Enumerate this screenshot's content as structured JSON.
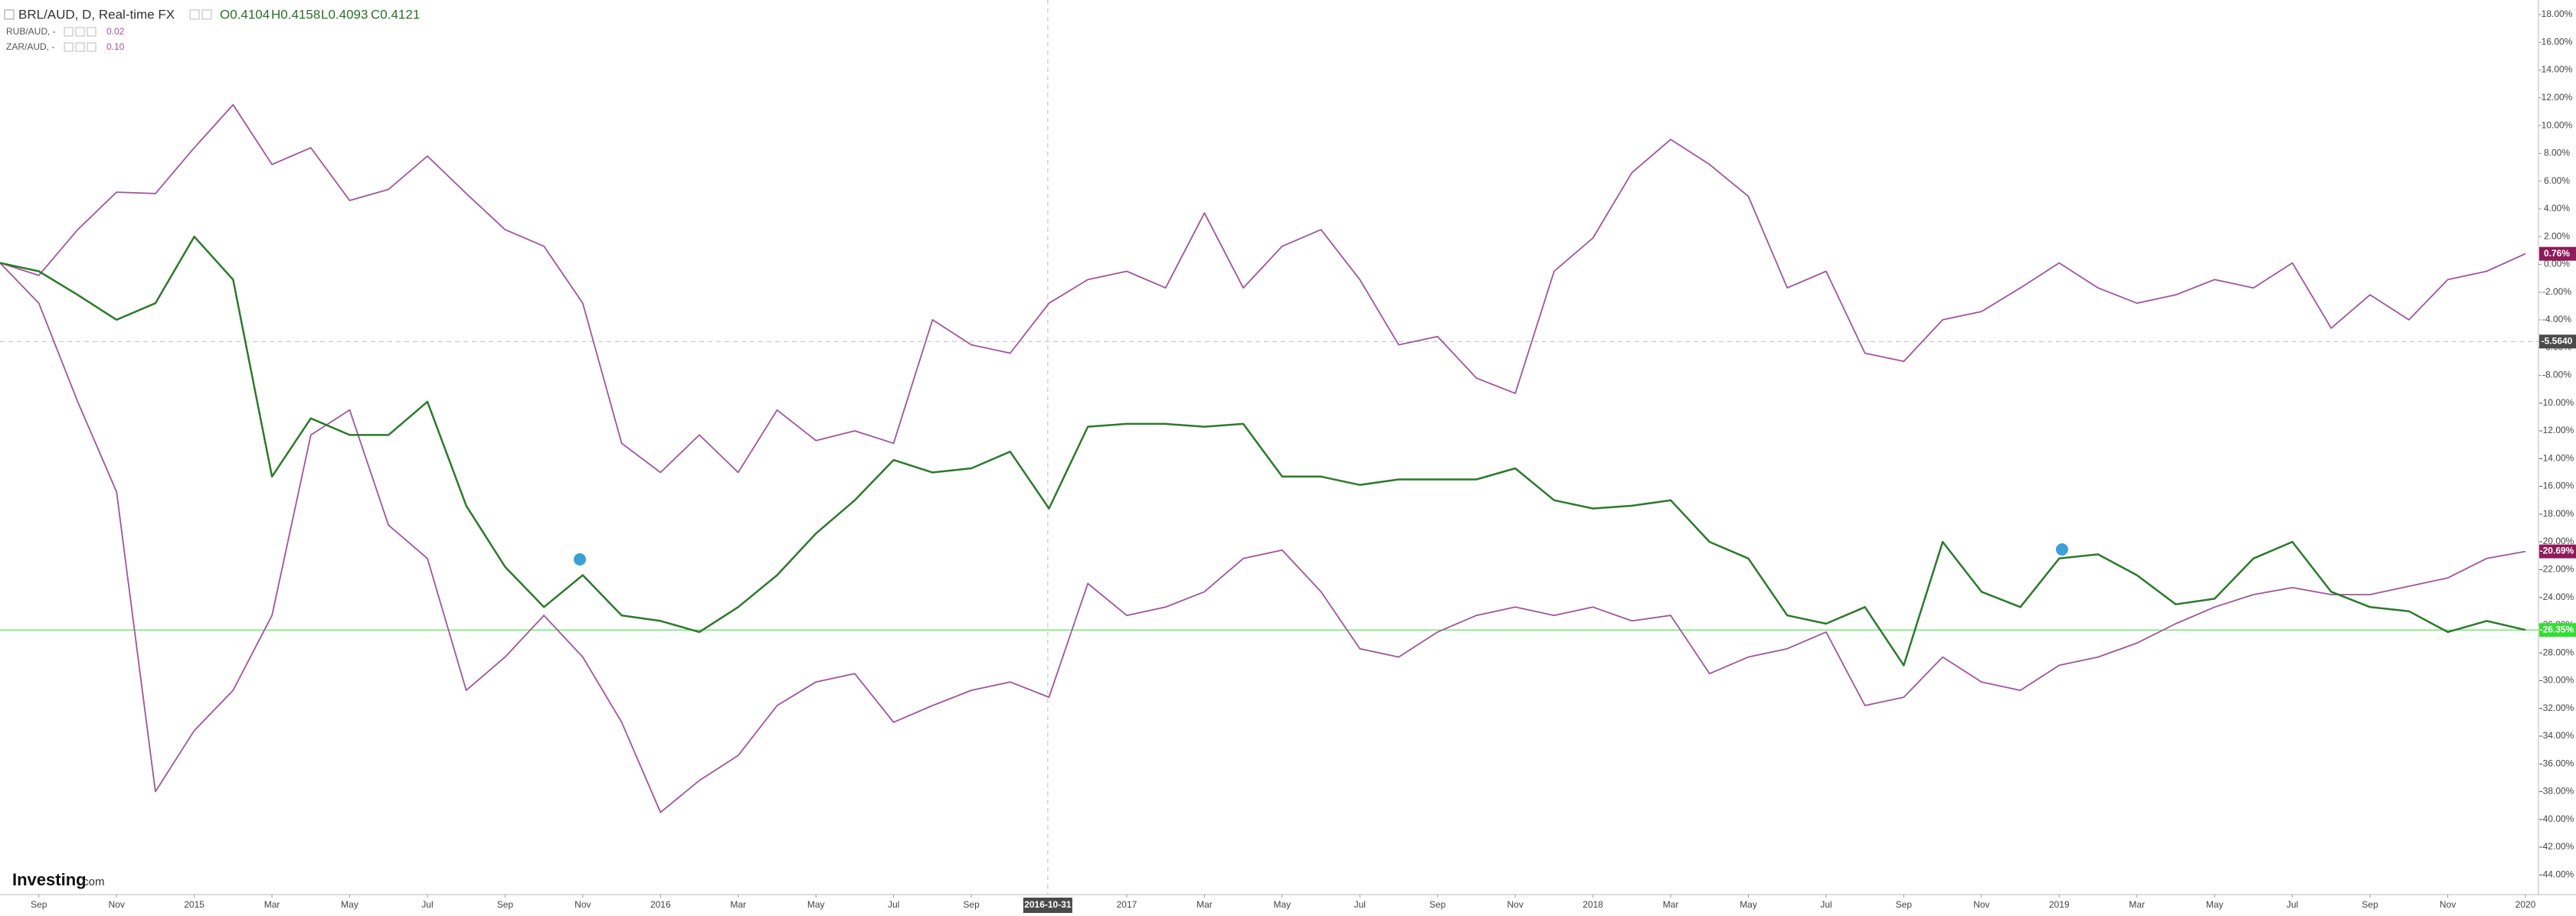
{
  "chart_data": {
    "type": "line",
    "header": {
      "symbol": "BRL/AUD, D, Real-time FX",
      "open": "O0.4104",
      "high": "H0.4158",
      "low": "L0.4093",
      "close": "C0.4121"
    },
    "logo": {
      "brand": "Investing",
      "suffix": ".com"
    },
    "x": [
      "2014-08",
      "2014-09",
      "2014-10",
      "2014-11",
      "2014-12",
      "2015-01",
      "2015-02",
      "2015-03",
      "2015-04",
      "2015-05",
      "2015-06",
      "2015-07",
      "2015-08",
      "2015-09",
      "2015-10",
      "2015-11",
      "2015-12",
      "2016-01",
      "2016-02",
      "2016-03",
      "2016-04",
      "2016-05",
      "2016-06",
      "2016-07",
      "2016-08",
      "2016-09",
      "2016-10",
      "2016-11",
      "2016-12",
      "2017-01",
      "2017-02",
      "2017-03",
      "2017-04",
      "2017-05",
      "2017-06",
      "2017-07",
      "2017-08",
      "2017-09",
      "2017-10",
      "2017-11",
      "2017-12",
      "2018-01",
      "2018-02",
      "2018-03",
      "2018-04",
      "2018-05",
      "2018-06",
      "2018-07",
      "2018-08",
      "2018-09",
      "2018-10",
      "2018-11",
      "2018-12",
      "2019-01",
      "2019-02",
      "2019-03",
      "2019-04",
      "2019-05",
      "2019-06",
      "2019-07",
      "2019-08",
      "2019-09",
      "2019-10",
      "2019-11",
      "2019-12",
      "2020-01"
    ],
    "xlim": [
      "2014-08",
      "2020-01"
    ],
    "xticks": [
      {
        "value": "2014-09",
        "label": "Sep"
      },
      {
        "value": "2014-11",
        "label": "Nov"
      },
      {
        "value": "2015-01",
        "label": "2015"
      },
      {
        "value": "2015-03",
        "label": "Mar"
      },
      {
        "value": "2015-05",
        "label": "May"
      },
      {
        "value": "2015-07",
        "label": "Jul"
      },
      {
        "value": "2015-09",
        "label": "Sep"
      },
      {
        "value": "2015-11",
        "label": "Nov"
      },
      {
        "value": "2016-01",
        "label": "2016"
      },
      {
        "value": "2016-03",
        "label": "Mar"
      },
      {
        "value": "2016-05",
        "label": "May"
      },
      {
        "value": "2016-07",
        "label": "Jul"
      },
      {
        "value": "2016-09",
        "label": "Sep"
      },
      {
        "value": "2017-01",
        "label": "2017"
      },
      {
        "value": "2017-03",
        "label": "Mar"
      },
      {
        "value": "2017-05",
        "label": "May"
      },
      {
        "value": "2017-07",
        "label": "Jul"
      },
      {
        "value": "2017-09",
        "label": "Sep"
      },
      {
        "value": "2017-11",
        "label": "Nov"
      },
      {
        "value": "2018-01",
        "label": "2018"
      },
      {
        "value": "2018-03",
        "label": "Mar"
      },
      {
        "value": "2018-05",
        "label": "May"
      },
      {
        "value": "2018-07",
        "label": "Jul"
      },
      {
        "value": "2018-09",
        "label": "Sep"
      },
      {
        "value": "2018-11",
        "label": "Nov"
      },
      {
        "value": "2019-01",
        "label": "2019"
      },
      {
        "value": "2019-03",
        "label": "Mar"
      },
      {
        "value": "2019-05",
        "label": "May"
      },
      {
        "value": "2019-07",
        "label": "Jul"
      },
      {
        "value": "2019-09",
        "label": "Sep"
      },
      {
        "value": "2019-11",
        "label": "Nov"
      },
      {
        "value": "2020-01",
        "label": "2020"
      }
    ],
    "ylim": [
      -45.2,
      19.05
    ],
    "yticks": [
      {
        "value": 18,
        "label": "18.00%"
      },
      {
        "value": 16,
        "label": "16.00%"
      },
      {
        "value": 14,
        "label": "14.00%"
      },
      {
        "value": 12,
        "label": "12.00%"
      },
      {
        "value": 10,
        "label": "10.00%"
      },
      {
        "value": 8,
        "label": "8.00%"
      },
      {
        "value": 6,
        "label": "6.00%"
      },
      {
        "value": 4,
        "label": "4.00%"
      },
      {
        "value": 2,
        "label": "2.00%"
      },
      {
        "value": 0,
        "label": "0.00%"
      },
      {
        "value": -2,
        "label": "-2.00%"
      },
      {
        "value": -4,
        "label": "-4.00%"
      },
      {
        "value": -6,
        "label": "-6.00%"
      },
      {
        "value": -8,
        "label": "-8.00%"
      },
      {
        "value": -10,
        "label": "-10.00%"
      },
      {
        "value": -12,
        "label": "-12.00%"
      },
      {
        "value": -14,
        "label": "-14.00%"
      },
      {
        "value": -16,
        "label": "-16.00%"
      },
      {
        "value": -18,
        "label": "-18.00%"
      },
      {
        "value": -20,
        "label": "-20.00%"
      },
      {
        "value": -22,
        "label": "-22.00%"
      },
      {
        "value": -24,
        "label": "-24.00%"
      },
      {
        "value": -26,
        "label": "-26.00%"
      },
      {
        "value": -28,
        "label": "-28.00%"
      },
      {
        "value": -30,
        "label": "-30.00%"
      },
      {
        "value": -32,
        "label": "-32.00%"
      },
      {
        "value": -34,
        "label": "-34.00%"
      },
      {
        "value": -36,
        "label": "-36.00%"
      },
      {
        "value": -38,
        "label": "-38.00%"
      },
      {
        "value": -40,
        "label": "-40.00%"
      },
      {
        "value": -42,
        "label": "-42.00%"
      },
      {
        "value": -44,
        "label": "-44.00%"
      }
    ],
    "crosshair": {
      "x": {
        "value": "2016-10-31",
        "label": "2016-10-31"
      },
      "y": {
        "value": -5.564,
        "label": "-5.5640"
      }
    },
    "series": [
      {
        "name": "BRL/AUD, D, Real-time FX",
        "color": "#2b7a2b",
        "badge_color": "#33dd33",
        "last_label": "-26.35%",
        "price_line": true,
        "values": [
          0.1,
          -0.5,
          -2.2,
          -4.0,
          -2.8,
          2.0,
          -1.1,
          -15.3,
          -11.1,
          -12.3,
          -12.3,
          -9.9,
          -17.4,
          -21.8,
          -24.7,
          -22.4,
          -25.3,
          -25.7,
          -26.5,
          -24.7,
          -22.4,
          -19.4,
          -17.0,
          -14.1,
          -15.0,
          -14.7,
          -13.5,
          -17.6,
          -11.7,
          -11.5,
          -11.5,
          -11.7,
          -11.5,
          -15.3,
          -15.3,
          -15.9,
          -15.5,
          -15.5,
          -15.5,
          -14.7,
          -17.0,
          -17.6,
          -17.4,
          -17.0,
          -20.0,
          -21.2,
          -25.3,
          -25.9,
          -24.7,
          -28.9,
          -20.0,
          -23.6,
          -24.7,
          -21.2,
          -20.9,
          -22.4,
          -24.5,
          -24.1,
          -21.2,
          -20.0,
          -23.6,
          -24.7,
          -25.0,
          -26.5,
          -25.7,
          -26.35
        ]
      },
      {
        "name": "RUB/AUD, -",
        "legend_value": "0.02",
        "color": "#a0559b",
        "badge_color": "#8e1b5a",
        "last_label": "-20.69%",
        "values": [
          0.1,
          -2.8,
          -9.9,
          -16.4,
          -38.0,
          -33.6,
          -30.7,
          -25.3,
          -12.3,
          -10.5,
          -18.8,
          -21.2,
          -30.7,
          -28.3,
          -25.3,
          -28.3,
          -33.0,
          -39.5,
          -37.2,
          -35.4,
          -31.8,
          -30.1,
          -29.5,
          -33.0,
          -31.8,
          -30.7,
          -30.1,
          -31.2,
          -23.0,
          -25.3,
          -24.7,
          -23.6,
          -21.2,
          -20.6,
          -23.6,
          -27.7,
          -28.3,
          -26.5,
          -25.3,
          -24.7,
          -25.3,
          -24.7,
          -25.7,
          -25.3,
          -29.5,
          -28.3,
          -27.7,
          -26.5,
          -31.8,
          -31.2,
          -28.3,
          -30.1,
          -30.7,
          -28.9,
          -28.3,
          -27.3,
          -25.9,
          -24.7,
          -23.8,
          -23.3,
          -23.8,
          -23.8,
          -23.2,
          -22.6,
          -21.2,
          -20.69
        ]
      },
      {
        "name": "ZAR/AUD, -",
        "legend_value": "0.10",
        "color": "#a0559b",
        "badge_color": "#8e1b5a",
        "last_label": "0.76%",
        "values": [
          0.1,
          -0.8,
          2.5,
          5.2,
          5.1,
          8.4,
          11.5,
          7.2,
          8.4,
          4.6,
          5.4,
          7.8,
          5.1,
          2.5,
          1.3,
          -2.8,
          -12.9,
          -15.0,
          -12.3,
          -15.0,
          -10.5,
          -12.7,
          -12.0,
          -12.9,
          -4.0,
          -5.8,
          -6.4,
          -2.8,
          -1.1,
          -0.5,
          -1.7,
          3.7,
          -1.7,
          1.3,
          2.5,
          -1.1,
          -5.8,
          -5.2,
          -8.2,
          -9.3,
          -0.5,
          1.9,
          6.6,
          9.0,
          7.2,
          4.9,
          -1.7,
          -0.5,
          -6.4,
          -7.0,
          -4.0,
          -3.4,
          -1.7,
          0.1,
          -1.7,
          -2.8,
          -2.2,
          -1.1,
          -1.7,
          0.1,
          -4.6,
          -2.2,
          -4.0,
          -1.1,
          -0.5,
          0.76
        ]
      }
    ]
  }
}
